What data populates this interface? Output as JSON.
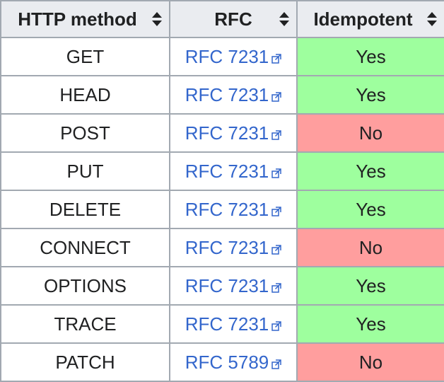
{
  "table": {
    "headers": [
      "HTTP method",
      "RFC",
      "Idempotent"
    ],
    "rows": [
      {
        "method": "GET",
        "rfc": "RFC 7231",
        "idempotent": "Yes"
      },
      {
        "method": "HEAD",
        "rfc": "RFC 7231",
        "idempotent": "Yes"
      },
      {
        "method": "POST",
        "rfc": "RFC 7231",
        "idempotent": "No"
      },
      {
        "method": "PUT",
        "rfc": "RFC 7231",
        "idempotent": "Yes"
      },
      {
        "method": "DELETE",
        "rfc": "RFC 7231",
        "idempotent": "Yes"
      },
      {
        "method": "CONNECT",
        "rfc": "RFC 7231",
        "idempotent": "No"
      },
      {
        "method": "OPTIONS",
        "rfc": "RFC 7231",
        "idempotent": "Yes"
      },
      {
        "method": "TRACE",
        "rfc": "RFC 7231",
        "idempotent": "Yes"
      },
      {
        "method": "PATCH",
        "rfc": "RFC 5789",
        "idempotent": "No"
      }
    ]
  },
  "icons": {
    "sort": "sort-icon",
    "external_link": "external-link-icon"
  },
  "colors": {
    "yes_bg": "#9eff9e",
    "no_bg": "#ff9e9e",
    "header_bg": "#eaecf0",
    "link": "#3366cc",
    "border": "#a2a9b1"
  }
}
